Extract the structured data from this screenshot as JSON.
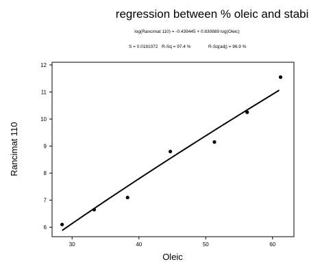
{
  "chart_data": {
    "type": "scatter",
    "title": "regression between % oleic and stability",
    "equation": "log(Rancimat 110) = -0.439445 + 0.830889 log(Oleic)",
    "stats": {
      "s": "S = 0.0181072",
      "rsq": "R-Sq = 97.4 %",
      "rsq_adj": "R-Sq(adj) = 96.9 %"
    },
    "xlabel": "Oleic",
    "ylabel": "Rancimat 110",
    "xlim": [
      27,
      63.2
    ],
    "ylim": [
      5.65,
      12.1
    ],
    "xticks": [
      30,
      40,
      50,
      60
    ],
    "yticks": [
      6,
      7,
      8,
      9,
      10,
      11,
      12
    ],
    "grid": false,
    "legend": "none",
    "series": [
      {
        "type": "scatter",
        "x": [
          28.5,
          33.3,
          38.3,
          44.7,
          51.3,
          56.2,
          61.2
        ],
        "y": [
          6.1,
          6.65,
          7.1,
          8.8,
          9.15,
          10.25,
          11.55
        ]
      }
    ],
    "fit": {
      "intercept_log10": -0.439445,
      "slope_log10": 0.830889,
      "x_range": [
        28.5,
        61
      ]
    },
    "colors": {
      "marks": "#000000",
      "background": "#ffffff"
    }
  }
}
